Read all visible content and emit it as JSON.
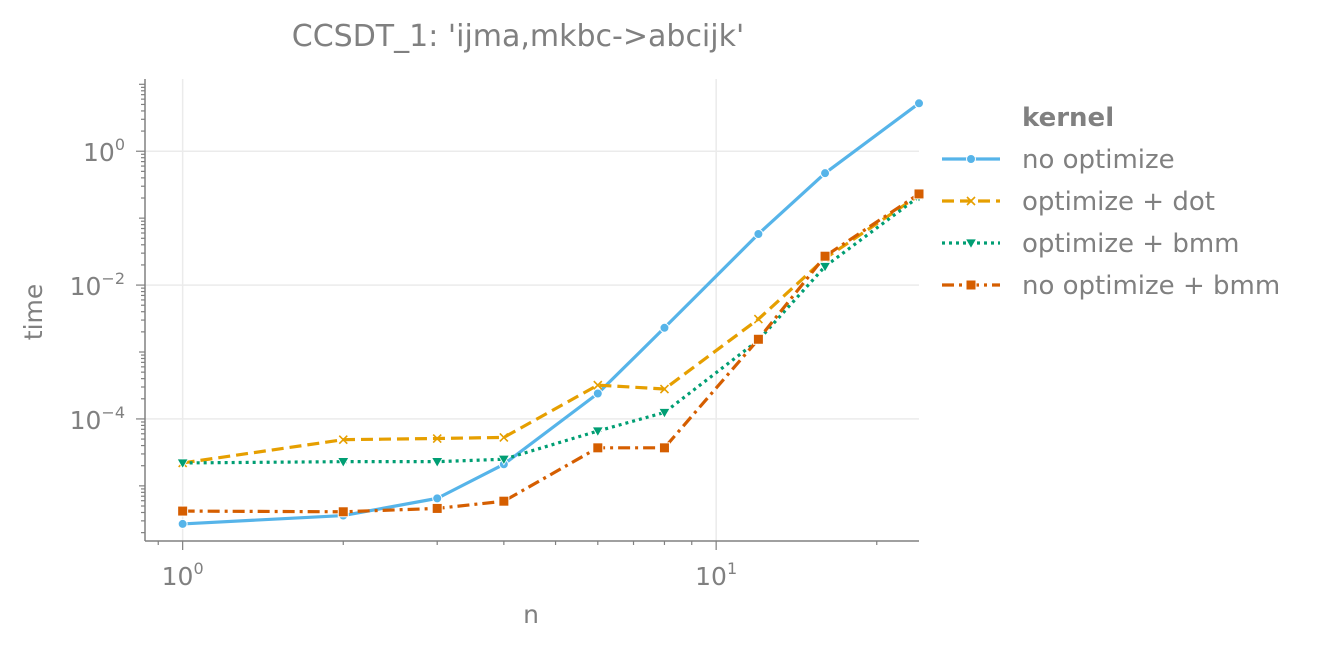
{
  "chart_data": {
    "type": "line",
    "title": "CCSDT_1: 'ijma,mkbc->abcijk'",
    "xlabel": "n",
    "ylabel": "time",
    "xscale": "log",
    "yscale": "log",
    "xlim": [
      0.85,
      24
    ],
    "ylim": [
      1.5e-06,
      12
    ],
    "x_ticks": [
      {
        "base": "10",
        "exp": "0",
        "value": 1
      },
      {
        "base": "10",
        "exp": "1",
        "value": 10
      }
    ],
    "y_ticks": [
      {
        "base": "10",
        "exp": "0",
        "value": 1
      },
      {
        "base": "10",
        "exp": "−2",
        "value": 0.01
      },
      {
        "base": "10",
        "exp": "−4",
        "value": 0.0001
      }
    ],
    "grid": true,
    "legend": {
      "title": "kernel",
      "placement": "outside-right"
    },
    "x": [
      1,
      2,
      3,
      4,
      6,
      8,
      12,
      16,
      24
    ],
    "series": [
      {
        "name": "no optimize",
        "color": "#56b4e9",
        "dash": "solid",
        "marker": "circle",
        "values": [
          2.7e-06,
          3.6e-06,
          6.5e-06,
          2.1e-05,
          0.00024,
          0.0023,
          0.058,
          0.47,
          5.2
        ]
      },
      {
        "name": "optimize + dot",
        "color": "#e69f00",
        "dash": "dashed",
        "marker": "x",
        "values": [
          2.2e-05,
          4.9e-05,
          5.1e-05,
          5.3e-05,
          0.00032,
          0.00028,
          0.0031,
          0.025,
          0.22
        ]
      },
      {
        "name": "optimize + bmm",
        "color": "#009e73",
        "dash": "dotted",
        "marker": "triangle-down",
        "values": [
          2.2e-05,
          2.3e-05,
          2.3e-05,
          2.5e-05,
          6.6e-05,
          0.000125,
          0.0015,
          0.019,
          0.21
        ]
      },
      {
        "name": "no optimize + bmm",
        "color": "#d55e00",
        "dash": "dashdot",
        "marker": "square",
        "values": [
          4.2e-06,
          4.1e-06,
          4.6e-06,
          5.9e-06,
          3.7e-05,
          3.7e-05,
          0.00155,
          0.027,
          0.23
        ]
      }
    ]
  }
}
